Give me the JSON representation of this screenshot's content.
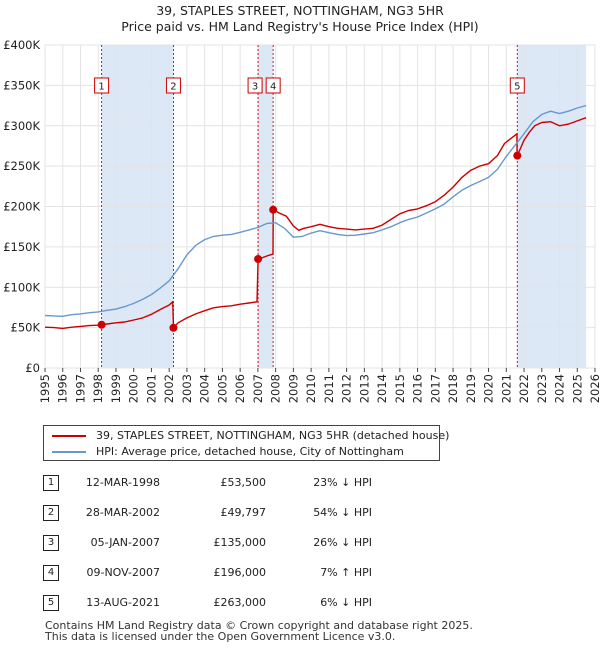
{
  "chart_data": {
    "type": "line",
    "title": "39, STAPLES STREET, NOTTINGHAM, NG3 5HR",
    "subtitle": "Price paid vs. HM Land Registry's House Price Index (HPI)",
    "xlabel": "",
    "ylabel": "",
    "xlim": [
      1995,
      2026
    ],
    "ylim": [
      0,
      400000
    ],
    "x_ticks": [
      "1995",
      "1996",
      "1997",
      "1998",
      "1999",
      "2000",
      "2001",
      "2002",
      "2003",
      "2004",
      "2005",
      "2006",
      "2007",
      "2008",
      "2009",
      "2010",
      "2011",
      "2012",
      "2013",
      "2014",
      "2015",
      "2016",
      "2017",
      "2018",
      "2019",
      "2020",
      "2021",
      "2022",
      "2023",
      "2024",
      "2025",
      "2026"
    ],
    "y_ticks": [
      {
        "value": 0,
        "label": "£0"
      },
      {
        "value": 50000,
        "label": "£50K"
      },
      {
        "value": 100000,
        "label": "£100K"
      },
      {
        "value": 150000,
        "label": "£150K"
      },
      {
        "value": 200000,
        "label": "£200K"
      },
      {
        "value": 250000,
        "label": "£250K"
      },
      {
        "value": 300000,
        "label": "£300K"
      },
      {
        "value": 350000,
        "label": "£350K"
      },
      {
        "value": 400000,
        "label": "£400K"
      }
    ],
    "grid": true,
    "series": [
      {
        "name": "39, STAPLES STREET, NOTTINGHAM, NG3 5HR (detached house)",
        "color": "#cc0000",
        "points": [
          [
            1995,
            50500
          ],
          [
            1995.5,
            50000
          ],
          [
            1996,
            49000
          ],
          [
            1996.5,
            50500
          ],
          [
            1997,
            51500
          ],
          [
            1997.5,
            52500
          ],
          [
            1998.0,
            53000
          ],
          [
            1998.19,
            53500
          ],
          [
            1998.5,
            54500
          ],
          [
            1999,
            56000
          ],
          [
            1999.5,
            57000
          ],
          [
            2000,
            59500
          ],
          [
            2000.5,
            62000
          ],
          [
            2001,
            66500
          ],
          [
            2001.5,
            72500
          ],
          [
            2002.0,
            78000
          ],
          [
            2002.2,
            82000
          ],
          [
            2002.24,
            49797
          ],
          [
            2002.5,
            56000
          ],
          [
            2003,
            62000
          ],
          [
            2003.5,
            67000
          ],
          [
            2004,
            71000
          ],
          [
            2004.5,
            74500
          ],
          [
            2005,
            76000
          ],
          [
            2005.5,
            77000
          ],
          [
            2006,
            79000
          ],
          [
            2006.5,
            80500
          ],
          [
            2006.95,
            82000
          ],
          [
            2007.01,
            135000
          ],
          [
            2007.3,
            137000
          ],
          [
            2007.6,
            139500
          ],
          [
            2007.85,
            141000
          ],
          [
            2007.86,
            196000
          ],
          [
            2008.2,
            192000
          ],
          [
            2008.6,
            188000
          ],
          [
            2009,
            176000
          ],
          [
            2009.3,
            170500
          ],
          [
            2009.6,
            173000
          ],
          [
            2010,
            175000
          ],
          [
            2010.5,
            178000
          ],
          [
            2011,
            175000
          ],
          [
            2011.5,
            173000
          ],
          [
            2012,
            172000
          ],
          [
            2012.5,
            171000
          ],
          [
            2013,
            172000
          ],
          [
            2013.5,
            173000
          ],
          [
            2014,
            177000
          ],
          [
            2014.5,
            184000
          ],
          [
            2015,
            191000
          ],
          [
            2015.5,
            195000
          ],
          [
            2016,
            197000
          ],
          [
            2016.5,
            201000
          ],
          [
            2017,
            206000
          ],
          [
            2017.5,
            214000
          ],
          [
            2018,
            224000
          ],
          [
            2018.5,
            236000
          ],
          [
            2019,
            245000
          ],
          [
            2019.5,
            250000
          ],
          [
            2020,
            253000
          ],
          [
            2020.5,
            263000
          ],
          [
            2020.9,
            278000
          ],
          [
            2021.3,
            285000
          ],
          [
            2021.6,
            290000
          ],
          [
            2021.61,
            263000
          ],
          [
            2021.8,
            272000
          ],
          [
            2022,
            282000
          ],
          [
            2022.3,
            292000
          ],
          [
            2022.6,
            300000
          ],
          [
            2023,
            304000
          ],
          [
            2023.5,
            305000
          ],
          [
            2024,
            300000
          ],
          [
            2024.5,
            302000
          ],
          [
            2025,
            306000
          ],
          [
            2025.5,
            310000
          ]
        ]
      },
      {
        "name": "HPI: Average price, detached house, City of Nottingham",
        "color": "#6699cc",
        "points": [
          [
            1995,
            65000
          ],
          [
            1995.5,
            64500
          ],
          [
            1996,
            64000
          ],
          [
            1996.5,
            66000
          ],
          [
            1997,
            67000
          ],
          [
            1997.5,
            68500
          ],
          [
            1998,
            69500
          ],
          [
            1998.5,
            71500
          ],
          [
            1999,
            73000
          ],
          [
            1999.5,
            76000
          ],
          [
            2000,
            80000
          ],
          [
            2000.5,
            85000
          ],
          [
            2001,
            91000
          ],
          [
            2001.5,
            99000
          ],
          [
            2002,
            108000
          ],
          [
            2002.5,
            123000
          ],
          [
            2003,
            140000
          ],
          [
            2003.5,
            152000
          ],
          [
            2004,
            159000
          ],
          [
            2004.5,
            163000
          ],
          [
            2005,
            164500
          ],
          [
            2005.5,
            165500
          ],
          [
            2006,
            168000
          ],
          [
            2006.5,
            171000
          ],
          [
            2007,
            174000
          ],
          [
            2007.5,
            179000
          ],
          [
            2008,
            180000
          ],
          [
            2008.5,
            173000
          ],
          [
            2009,
            162000
          ],
          [
            2009.5,
            163000
          ],
          [
            2010,
            167000
          ],
          [
            2010.5,
            170000
          ],
          [
            2011,
            167500
          ],
          [
            2011.5,
            165500
          ],
          [
            2012,
            164000
          ],
          [
            2012.5,
            164500
          ],
          [
            2013,
            166000
          ],
          [
            2013.5,
            167500
          ],
          [
            2014,
            171000
          ],
          [
            2014.5,
            175000
          ],
          [
            2015,
            180000
          ],
          [
            2015.5,
            184000
          ],
          [
            2016,
            187000
          ],
          [
            2016.5,
            192000
          ],
          [
            2017,
            197000
          ],
          [
            2017.5,
            203000
          ],
          [
            2018,
            212000
          ],
          [
            2018.5,
            220000
          ],
          [
            2019,
            226000
          ],
          [
            2019.5,
            231000
          ],
          [
            2020,
            236000
          ],
          [
            2020.5,
            246000
          ],
          [
            2021,
            262000
          ],
          [
            2021.5,
            276000
          ],
          [
            2022,
            290000
          ],
          [
            2022.5,
            305000
          ],
          [
            2023,
            314000
          ],
          [
            2023.5,
            318000
          ],
          [
            2024,
            315000
          ],
          [
            2024.5,
            318000
          ],
          [
            2025,
            322000
          ],
          [
            2025.5,
            325000
          ]
        ]
      }
    ],
    "sale_markers": [
      {
        "label": "1",
        "x": 1998.19,
        "y": 53500
      },
      {
        "label": "2",
        "x": 2002.24,
        "y": 49797
      },
      {
        "label": "3",
        "x": 2007.01,
        "y": 135000
      },
      {
        "label": "4",
        "x": 2007.86,
        "y": 196000
      },
      {
        "label": "5",
        "x": 2021.62,
        "y": 263000
      }
    ],
    "shaded_periods": [
      [
        1998.19,
        2002.24
      ],
      [
        2007.01,
        2007.86
      ],
      [
        2021.62,
        2025.5
      ]
    ],
    "colors": {
      "price": "#cc0000",
      "hpi": "#6699cc",
      "band": "#dde8f7",
      "marker_box": "#cc0000",
      "vline": "#cc0000"
    }
  },
  "legend": {
    "price_label": "39, STAPLES STREET, NOTTINGHAM, NG3 5HR (detached house)",
    "hpi_label": "HPI: Average price, detached house, City of Nottingham"
  },
  "sales_table": [
    {
      "num": "1",
      "date": "12-MAR-1998",
      "price": "£53,500",
      "hpi": "23% ↓ HPI"
    },
    {
      "num": "2",
      "date": "28-MAR-2002",
      "price": "£49,797",
      "hpi": "54% ↓ HPI"
    },
    {
      "num": "3",
      "date": "05-JAN-2007",
      "price": "£135,000",
      "hpi": "26% ↓ HPI"
    },
    {
      "num": "4",
      "date": "09-NOV-2007",
      "price": "£196,000",
      "hpi": "7% ↑ HPI"
    },
    {
      "num": "5",
      "date": "13-AUG-2021",
      "price": "£263,000",
      "hpi": "6% ↓ HPI"
    }
  ],
  "footer": {
    "line1": "Contains HM Land Registry data © Crown copyright and database right 2025.",
    "line2": "This data is licensed under the Open Government Licence v3.0."
  }
}
